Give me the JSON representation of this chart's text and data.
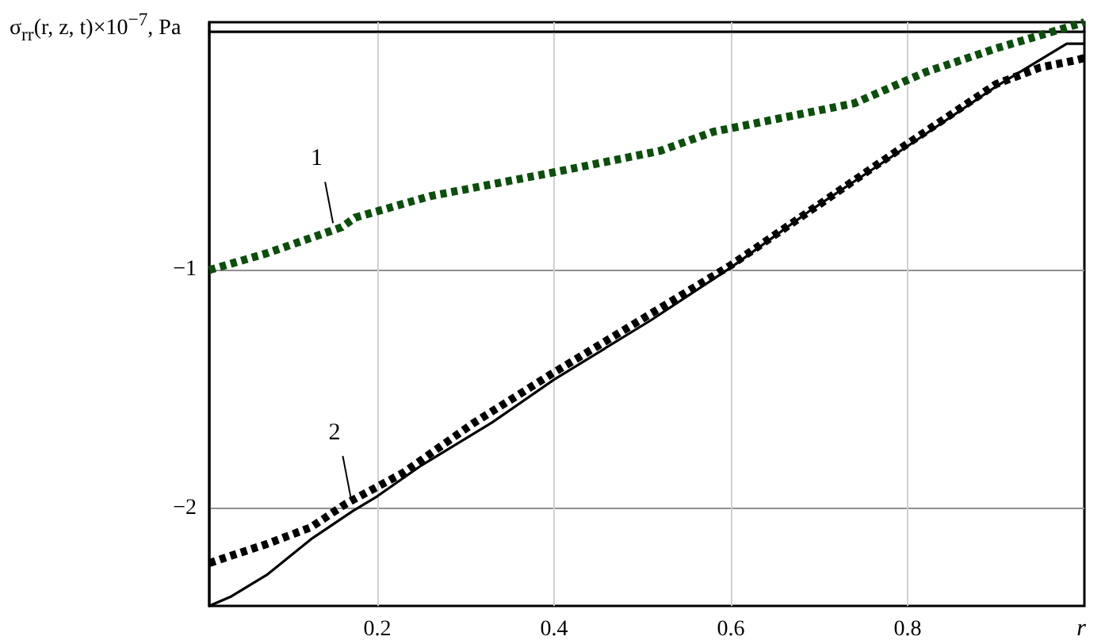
{
  "chart_data": {
    "type": "line",
    "ylabel": "σ$_{rr}$(r, z, t)×10$^{−7}$, Pa",
    "xlabel": "r",
    "xlim": [
      0.01,
      1
    ],
    "xticks": [
      0.2,
      0.4,
      0.6,
      0.8
    ],
    "ylim": [
      -2.41,
      0.04
    ],
    "yticks": [
      -2,
      -1,
      {
        "value": 0,
        "label": null
      }
    ],
    "grid": true,
    "marker": "none",
    "series": [
      {
        "color": "#0b4f0b",
        "line_style": "dashed",
        "x": [
          0.01,
          0.075,
          0.16,
          0.175,
          0.26,
          0.4,
          0.52,
          0.58,
          0.74,
          0.82,
          0.9,
          1.0
        ],
        "values": [
          -1.0,
          -0.93,
          -0.82,
          -0.78,
          -0.69,
          -0.59,
          -0.5,
          -0.42,
          -0.3,
          -0.17,
          -0.07,
          0.04
        ]
      },
      {
        "color": "#000000",
        "line_style": "dashed",
        "x": [
          0.01,
          0.075,
          0.125,
          0.165,
          0.23,
          0.31,
          0.4,
          0.6,
          0.8,
          0.9,
          0.95,
          0.99,
          1.0
        ],
        "values": [
          -2.23,
          -2.15,
          -2.08,
          -1.98,
          -1.85,
          -1.64,
          -1.43,
          -0.98,
          -0.47,
          -0.22,
          -0.15,
          -0.12,
          -0.11
        ]
      },
      {
        "color": "#000000",
        "line_style": "solid",
        "x": [
          0.01,
          0.035,
          0.075,
          0.125,
          0.173,
          0.2,
          0.25,
          0.33,
          0.4,
          0.51,
          0.6,
          0.69,
          0.8,
          0.9,
          0.98,
          1.0
        ],
        "values": [
          -2.41,
          -2.37,
          -2.28,
          -2.13,
          -2.01,
          -1.95,
          -1.82,
          -1.64,
          -1.46,
          -1.21,
          -0.99,
          -0.75,
          -0.48,
          -0.23,
          -0.05,
          -0.05
        ]
      }
    ],
    "annotations": [
      {
        "text": "1",
        "x": 0.15,
        "y": -0.83
      },
      {
        "text": "2",
        "x": 0.17,
        "y": -1.98
      }
    ]
  }
}
